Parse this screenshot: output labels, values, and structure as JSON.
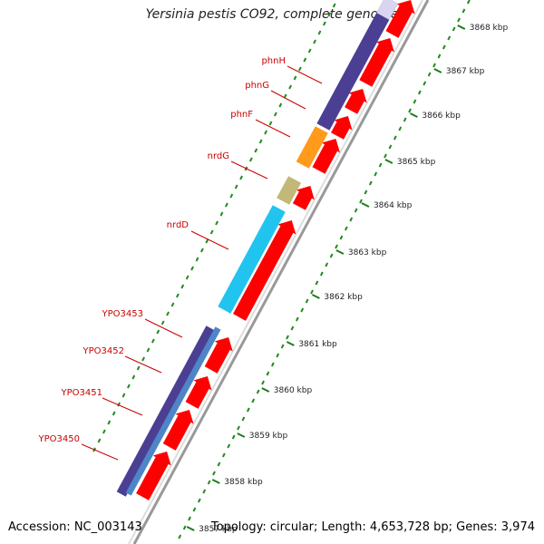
{
  "title": "Yersinia pestis CO92, complete genome",
  "footer": {
    "accession": "Accession: NC_003143",
    "topology": "Topology: circular; Length: 4,653,728 bp; Genes: 3,974"
  },
  "scale": {
    "unit": "kbp",
    "ticks": [
      {
        "value": 3857,
        "label": "3857 kbp"
      },
      {
        "value": 3858,
        "label": "3858 kbp"
      },
      {
        "value": 3859,
        "label": "3859 kbp"
      },
      {
        "value": 3860,
        "label": "3860 kbp"
      },
      {
        "value": 3861,
        "label": "3861 kbp"
      },
      {
        "value": 3862,
        "label": "3862 kbp"
      },
      {
        "value": 3863,
        "label": "3863 kbp"
      },
      {
        "value": 3864,
        "label": "3864 kbp"
      },
      {
        "value": 3865,
        "label": "3865 kbp"
      },
      {
        "value": 3866,
        "label": "3866 kbp"
      },
      {
        "value": 3867,
        "label": "3867 kbp"
      },
      {
        "value": 3868,
        "label": "3868 kbp"
      }
    ]
  },
  "genes": [
    {
      "name": "YPO3450"
    },
    {
      "name": "YPO3451"
    },
    {
      "name": "YPO3452"
    },
    {
      "name": "YPO3453"
    },
    {
      "name": "nrdD"
    },
    {
      "name": "nrdG"
    },
    {
      "name": "phnF"
    },
    {
      "name": "phnG"
    },
    {
      "name": "phnH"
    }
  ],
  "colors": {
    "forward_cds": "#ff0000",
    "label": "#cc0000",
    "backbone": "#999999",
    "tick": "#228b22",
    "cog_purple": "#4b3f94",
    "cog_blue": "#4e85c6",
    "cog_cyan": "#21c4ef",
    "cog_orange": "#ff9a1a",
    "cog_khaki": "#c2b877"
  }
}
